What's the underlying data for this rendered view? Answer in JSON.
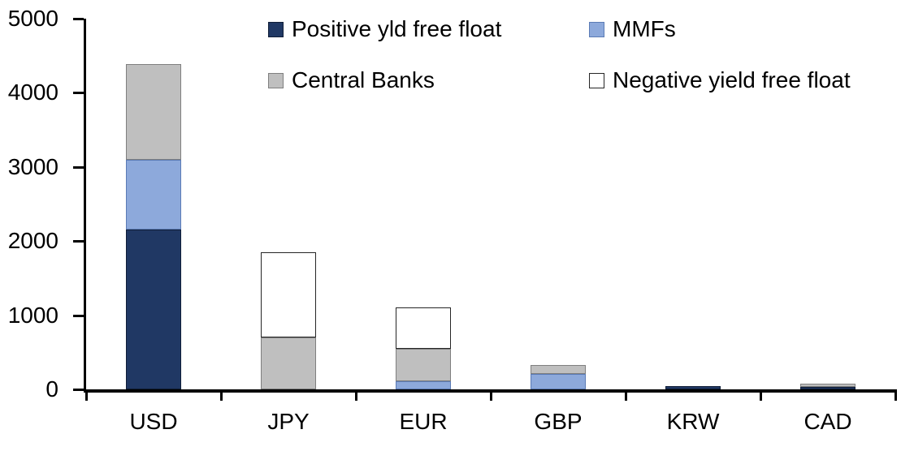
{
  "chart_data": {
    "type": "bar",
    "stacked": true,
    "title": "",
    "xlabel": "",
    "ylabel": "",
    "categories": [
      "USD",
      "JPY",
      "EUR",
      "GBP",
      "KRW",
      "CAD"
    ],
    "series": [
      {
        "name": "Positive yld free float",
        "color": "#203864",
        "border": "#101E38",
        "values": [
          2160,
          0,
          0,
          0,
          45,
          30
        ]
      },
      {
        "name": "MMFs",
        "color": "#8DA9DB",
        "border": "#5B7BB5",
        "values": [
          940,
          0,
          110,
          210,
          0,
          0
        ]
      },
      {
        "name": "Central Banks",
        "color": "#BFBFBF",
        "border": "#7F7F7F",
        "values": [
          1290,
          700,
          440,
          120,
          0,
          45
        ]
      },
      {
        "name": "Negative yield free float",
        "color": "#FFFFFF",
        "border": "#262626",
        "values": [
          0,
          1150,
          560,
          0,
          0,
          0
        ]
      }
    ],
    "totals_approx": {
      "USD": 4390,
      "JPY": 1850,
      "EUR": 1110,
      "GBP": 330,
      "KRW": 45,
      "CAD": 75
    },
    "ylim": [
      0,
      5000
    ],
    "yticks": [
      0,
      1000,
      2000,
      3000,
      4000,
      5000
    ],
    "ytick_labels": [
      "0",
      "1000",
      "2000",
      "3000",
      "4000",
      "5000"
    ],
    "grid": false,
    "legend_position": "top",
    "axis_color": "#000000",
    "background_color": "#FFFFFF"
  }
}
